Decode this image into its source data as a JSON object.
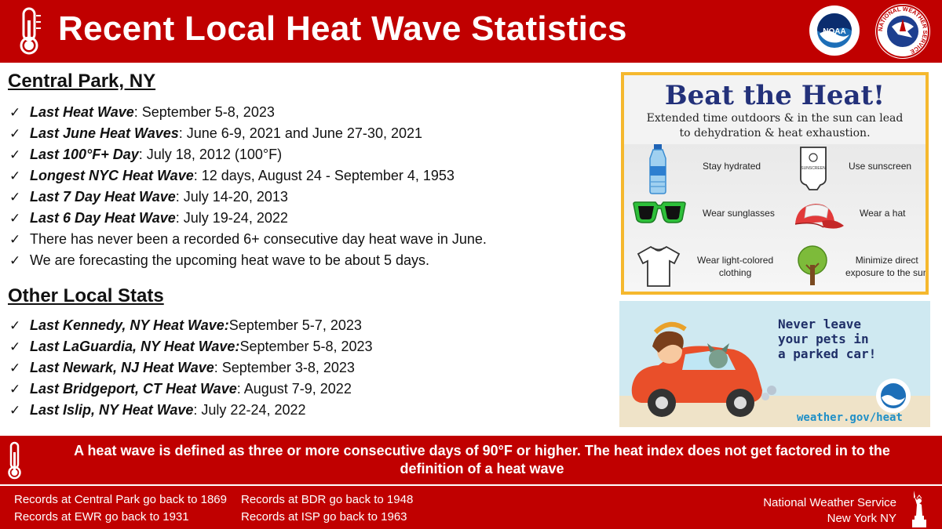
{
  "header": {
    "title": "Recent Local Heat Wave Statistics",
    "bg_color": "#c00000",
    "logo_left": "NOAA",
    "logo_right": "NATIONAL WEATHER SERVICE"
  },
  "central_park": {
    "title": "Central Park, NY",
    "items": [
      {
        "label": "Last Heat Wave",
        "text": ": September 5-8, 2023"
      },
      {
        "label": "Last June Heat Waves",
        "text": ": June 6-9, 2021 and June 27-30, 2021"
      },
      {
        "label": "Last 100°F+ Day",
        "text": ": July 18, 2012 (100°F)"
      },
      {
        "label": "Longest NYC Heat Wave",
        "text": ": 12 days, August 24 - September 4, 1953"
      },
      {
        "label": "Last 7 Day Heat Wave",
        "text": ": July 14-20, 2013"
      },
      {
        "label": "Last 6 Day Heat Wave",
        "text": ": July 19-24, 2022"
      },
      {
        "label": "",
        "text": "There has never been a recorded 6+ consecutive day heat wave in June."
      },
      {
        "label": "",
        "text": "We are forecasting the upcoming heat wave to be about 5 days."
      }
    ]
  },
  "other_local": {
    "title": "Other Local Stats",
    "items": [
      {
        "label": "Last Kennedy, NY Heat Wave:",
        "text": " September 5-7, 2023"
      },
      {
        "label": "Last LaGuardia, NY Heat Wave:",
        "text": " September 5-8, 2023"
      },
      {
        "label": "Last Newark, NJ Heat Wave",
        "text": ": September 3-8, 2023"
      },
      {
        "label": "Last Bridgeport, CT Heat Wave",
        "text": ": August 7-9, 2022"
      },
      {
        "label": "Last Islip, NY Heat Wave",
        "text": ": July 22-24, 2022"
      }
    ]
  },
  "beat_the_heat": {
    "title": "Beat the Heat!",
    "subtitle_line1": "Extended time outdoors & in the sun can lead",
    "subtitle_line2": "to dehydration & heat exhaustion.",
    "tips": {
      "hydrated": "Stay hydrated",
      "sunscreen": "Use sunscreen",
      "sunglasses": "Wear sunglasses",
      "hat": "Wear a hat",
      "clothing_1": "Wear light-colored",
      "clothing_2": "clothing",
      "sun_1": "Minimize direct",
      "sun_2": "exposure to the sun"
    }
  },
  "pets": {
    "line1": "Never leave",
    "line2": "your pets in",
    "line3": "a parked car!",
    "url": "weather.gov/heat"
  },
  "definition": {
    "line1": "A heat wave is defined as three or more consecutive days of 90°F or higher. The heat index does not get factored in to the",
    "line2": "definition of a heat wave"
  },
  "footer": {
    "records": [
      "Records at Central Park go back to 1869",
      "Records at EWR go back to 1931",
      "Records at BDR go back to 1948",
      "Records at ISP go back to 1963"
    ],
    "org_line1": "National Weather Service",
    "org_line2": "New York NY"
  }
}
